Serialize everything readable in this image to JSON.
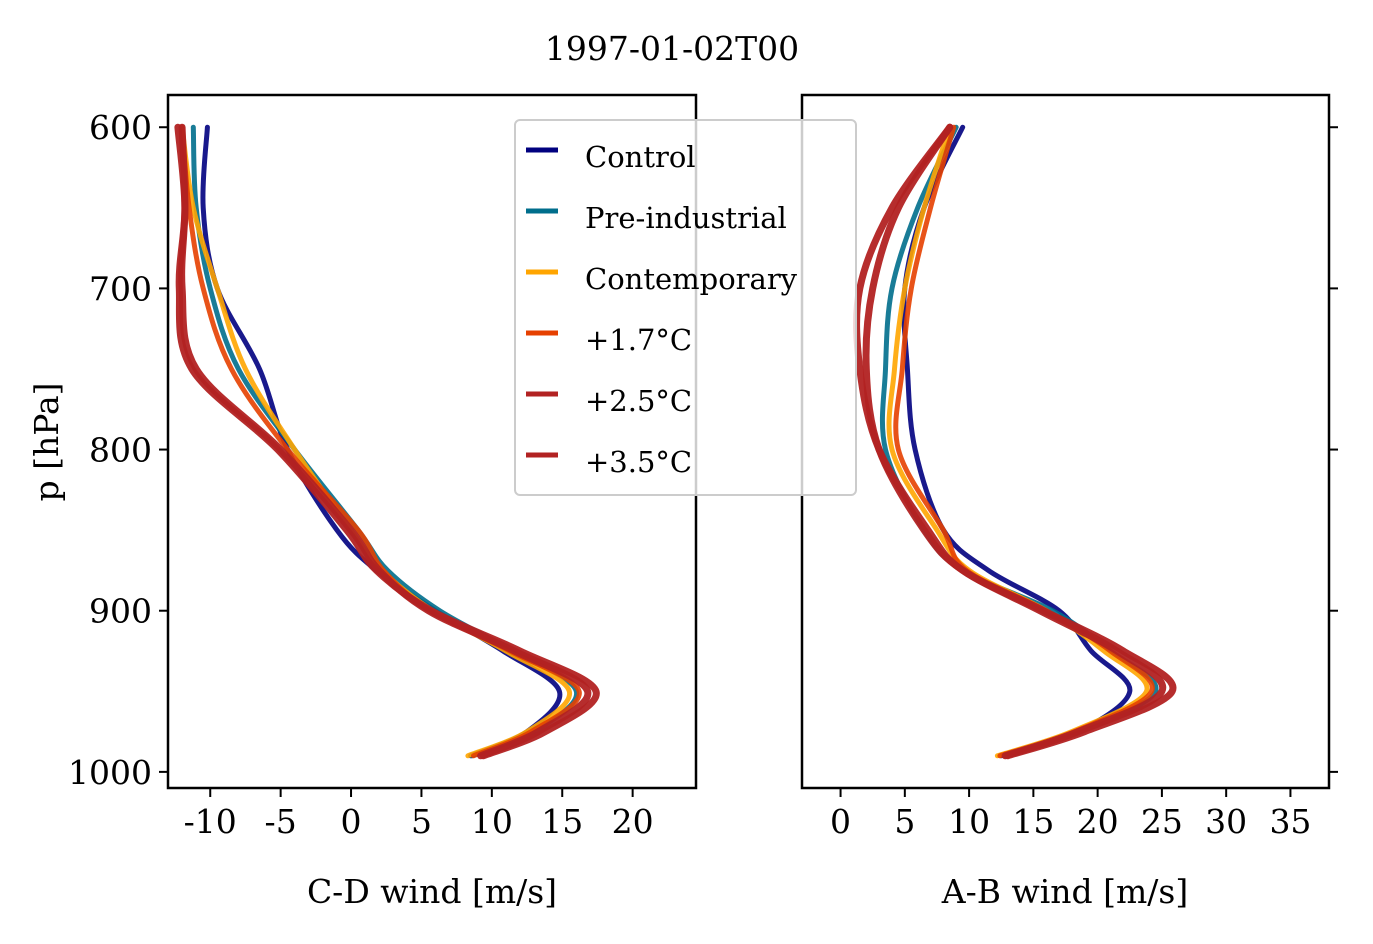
{
  "title": "1997-01-02T00",
  "ylabel": "p [hPa]",
  "colors": {
    "Control": "#00007f",
    "Pre-industrial": "#006e8c",
    "Contemporary": "#ffa500",
    "+1.7$^\\circ$C": "#e64000",
    "+2.5$^\\circ$C": "#b22222",
    "+3.5$^\\circ$C": "#b22222"
  },
  "legend": [
    {
      "label": "Control",
      "color": "#00007f"
    },
    {
      "label": "Pre-industrial",
      "color": "#006e8c"
    },
    {
      "label": "Contemporary",
      "color": "#ffa500"
    },
    {
      "label": "+1.7°C",
      "color": "#e64000"
    },
    {
      "label": "+2.5°C",
      "color": "#b22222"
    },
    {
      "label": "+3.5°C",
      "color": "#b22222"
    }
  ],
  "chart_data": [
    {
      "type": "line",
      "xlabel": "C-D wind [m/s]",
      "ylabel": "p [hPa]",
      "xlim": [
        -13,
        24.5
      ],
      "ylim": [
        1010,
        580
      ],
      "xticks": [
        -10,
        -5,
        0,
        5,
        10,
        15,
        20
      ],
      "xtick_labels": [
        "-10",
        "-5",
        "0",
        "5",
        "10",
        "15",
        "20"
      ],
      "yticks": [
        600,
        700,
        800,
        900,
        1000
      ],
      "ytick_labels": [
        "600",
        "700",
        "800",
        "900",
        "1000"
      ],
      "pressure": [
        600,
        650,
        700,
        750,
        800,
        850,
        875,
        900,
        925,
        950,
        975,
        990
      ],
      "series": [
        {
          "name": "Control",
          "values": [
            -10.2,
            -10.5,
            -9.5,
            -6.5,
            -4.5,
            -1.0,
            1.8,
            6.0,
            10.8,
            14.8,
            12.5,
            8.5
          ]
        },
        {
          "name": "Pre-industrial",
          "values": [
            -11.2,
            -11.0,
            -10.0,
            -8.0,
            -4.0,
            0.5,
            2.6,
            6.3,
            11.5,
            16.0,
            13.0,
            8.6
          ]
        },
        {
          "name": "Contemporary",
          "values": [
            -12.0,
            -11.2,
            -9.5,
            -7.5,
            -4.0,
            0.0,
            2.2,
            5.8,
            11.0,
            15.5,
            12.5,
            8.3
          ]
        },
        {
          "name": "+1.7°C",
          "values": [
            -12.0,
            -11.5,
            -10.5,
            -8.5,
            -4.5,
            0.5,
            2.3,
            5.6,
            11.3,
            16.2,
            12.8,
            8.7
          ]
        },
        {
          "name": "+2.5°C",
          "values": [
            -12.0,
            -11.8,
            -12.0,
            -11.0,
            -5.0,
            0.0,
            2.0,
            5.5,
            11.6,
            16.8,
            13.3,
            9.2
          ]
        },
        {
          "name": "+3.5°C",
          "values": [
            -12.3,
            -11.8,
            -12.2,
            -11.3,
            -5.2,
            -0.3,
            1.8,
            5.7,
            12.0,
            17.4,
            13.8,
            9.4
          ]
        }
      ]
    },
    {
      "type": "line",
      "xlabel": "A-B wind [m/s]",
      "xlim": [
        -3,
        38
      ],
      "ylim": [
        1010,
        580
      ],
      "xticks": [
        0,
        5,
        10,
        15,
        20,
        25,
        30,
        35
      ],
      "xtick_labels": [
        "0",
        "5",
        "10",
        "15",
        "20",
        "25",
        "30",
        "35"
      ],
      "yticks": [
        600,
        700,
        800,
        900,
        1000
      ],
      "pressure": [
        600,
        650,
        700,
        750,
        800,
        850,
        875,
        900,
        925,
        950,
        975,
        990
      ],
      "series": [
        {
          "name": "Control",
          "values": [
            9.5,
            6.5,
            5.0,
            5.2,
            5.8,
            8.0,
            11.5,
            17.0,
            19.5,
            22.5,
            18.5,
            12.5
          ]
        },
        {
          "name": "Pre-industrial",
          "values": [
            9.0,
            6.0,
            4.0,
            3.5,
            3.5,
            6.5,
            9.5,
            16.5,
            21.0,
            24.5,
            18.5,
            12.8
          ]
        },
        {
          "name": "Contemporary",
          "values": [
            8.5,
            6.5,
            5.0,
            4.2,
            4.0,
            7.5,
            10.0,
            16.0,
            20.5,
            23.8,
            18.0,
            12.2
          ]
        },
        {
          "name": "+1.7°C",
          "values": [
            8.8,
            7.0,
            5.5,
            4.8,
            4.5,
            8.0,
            9.8,
            16.0,
            21.0,
            24.2,
            18.2,
            12.4
          ]
        },
        {
          "name": "+2.5°C",
          "values": [
            8.5,
            4.5,
            2.5,
            2.0,
            3.0,
            6.5,
            9.5,
            15.5,
            21.5,
            25.0,
            18.5,
            12.8
          ]
        },
        {
          "name": "+3.5°C",
          "values": [
            8.5,
            4.0,
            1.5,
            1.5,
            3.0,
            6.8,
            9.5,
            15.8,
            22.0,
            25.8,
            19.0,
            13.0
          ]
        }
      ]
    }
  ]
}
